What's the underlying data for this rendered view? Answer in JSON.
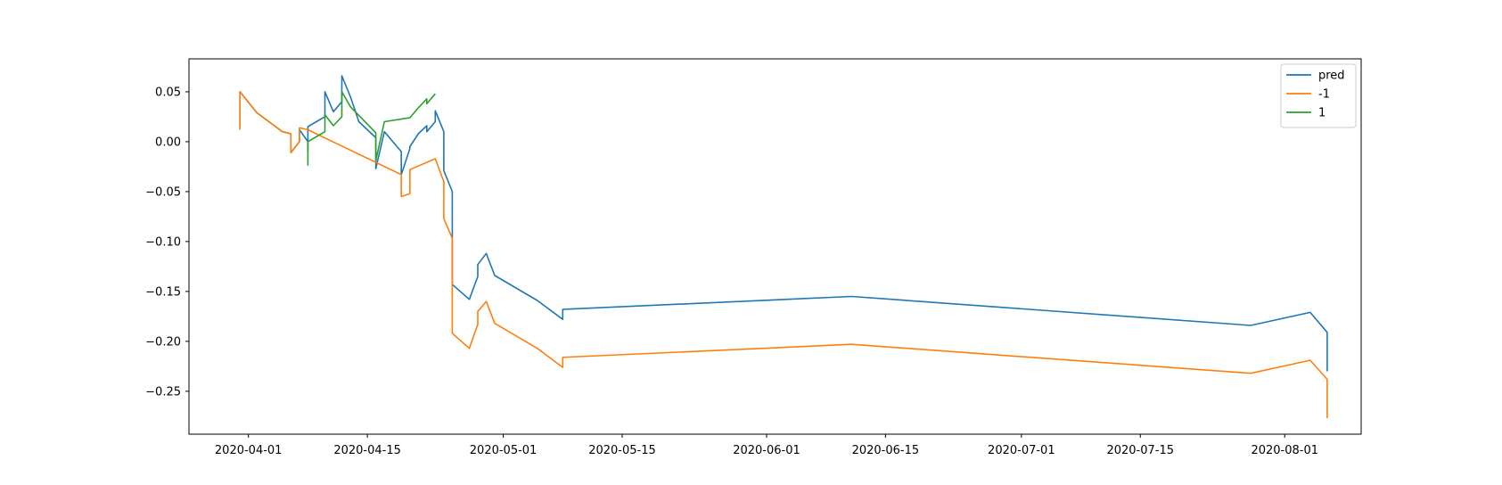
{
  "chart_data": {
    "type": "line",
    "title": "",
    "xlabel": "",
    "ylabel": "",
    "x_axis_type": "date",
    "xlim": [
      "2020-03-25",
      "2020-08-10"
    ],
    "ylim": [
      -0.293,
      0.083
    ],
    "x_ticks": [
      "2020-04-01",
      "2020-04-15",
      "2020-05-01",
      "2020-05-15",
      "2020-06-01",
      "2020-06-15",
      "2020-07-01",
      "2020-07-15",
      "2020-08-01"
    ],
    "y_ticks": [
      0.05,
      0.0,
      -0.05,
      -0.1,
      -0.15,
      -0.2,
      -0.25
    ],
    "y_tick_labels": [
      "0.05",
      "0.00",
      "−0.05",
      "−0.10",
      "−0.15",
      "−0.20",
      "−0.25"
    ],
    "grid": false,
    "legend_position": "top-right",
    "series": [
      {
        "name": "pred",
        "color": "#1f77b4",
        "points": [
          [
            "2020-03-31",
            0.012
          ],
          [
            "2020-03-31",
            0.045
          ],
          [
            "2020-03-31",
            0.05
          ],
          [
            "2020-04-02",
            0.029
          ],
          [
            "2020-04-05",
            0.01
          ],
          [
            "2020-04-06",
            0.008
          ],
          [
            "2020-04-06",
            -0.011
          ],
          [
            "2020-04-07",
            0.0
          ],
          [
            "2020-04-07",
            0.012
          ],
          [
            "2020-04-08",
            0.0
          ],
          [
            "2020-04-08",
            -0.01
          ],
          [
            "2020-04-08",
            0.015
          ],
          [
            "2020-04-09",
            0.02
          ],
          [
            "2020-04-10",
            0.025
          ],
          [
            "2020-04-10",
            0.05
          ],
          [
            "2020-04-11",
            0.03
          ],
          [
            "2020-04-12",
            0.04
          ],
          [
            "2020-04-12",
            0.066
          ],
          [
            "2020-04-13",
            0.045
          ],
          [
            "2020-04-14",
            0.02
          ],
          [
            "2020-04-16",
            0.004
          ],
          [
            "2020-04-16",
            -0.027
          ],
          [
            "2020-04-17",
            0.01
          ],
          [
            "2020-04-19",
            -0.01
          ],
          [
            "2020-04-19",
            -0.033
          ],
          [
            "2020-04-20",
            -0.007
          ],
          [
            "2020-04-20",
            -0.005
          ],
          [
            "2020-04-21",
            0.008
          ],
          [
            "2020-04-22",
            0.016
          ],
          [
            "2020-04-22",
            0.01
          ],
          [
            "2020-04-23",
            0.02
          ],
          [
            "2020-04-23",
            0.031
          ],
          [
            "2020-04-24",
            0.01
          ],
          [
            "2020-04-24",
            -0.029
          ],
          [
            "2020-04-25",
            -0.05
          ],
          [
            "2020-04-25",
            -0.1
          ],
          [
            "2020-04-25",
            -0.143
          ],
          [
            "2020-04-27",
            -0.158
          ],
          [
            "2020-04-28",
            -0.135
          ],
          [
            "2020-04-28",
            -0.123
          ],
          [
            "2020-04-29",
            -0.112
          ],
          [
            "2020-04-30",
            -0.134
          ],
          [
            "2020-05-05",
            -0.159
          ],
          [
            "2020-05-08",
            -0.178
          ],
          [
            "2020-05-08",
            -0.168
          ],
          [
            "2020-06-11",
            -0.155
          ],
          [
            "2020-07-28",
            -0.184
          ],
          [
            "2020-08-04",
            -0.171
          ],
          [
            "2020-08-06",
            -0.191
          ],
          [
            "2020-08-06",
            -0.23
          ]
        ]
      },
      {
        "name": "-1",
        "color": "#ff7f0e",
        "points": [
          [
            "2020-03-31",
            0.012
          ],
          [
            "2020-03-31",
            0.045
          ],
          [
            "2020-03-31",
            0.05
          ],
          [
            "2020-04-02",
            0.029
          ],
          [
            "2020-04-05",
            0.01
          ],
          [
            "2020-04-06",
            0.008
          ],
          [
            "2020-04-06",
            -0.011
          ],
          [
            "2020-04-07",
            0.0
          ],
          [
            "2020-04-07",
            0.014
          ],
          [
            "2020-04-08",
            0.012
          ],
          [
            "2020-04-19",
            -0.033
          ],
          [
            "2020-04-19",
            -0.055
          ],
          [
            "2020-04-20",
            -0.052
          ],
          [
            "2020-04-20",
            -0.028
          ],
          [
            "2020-04-23",
            -0.017
          ],
          [
            "2020-04-24",
            -0.04
          ],
          [
            "2020-04-24",
            -0.055
          ],
          [
            "2020-04-24",
            -0.077
          ],
          [
            "2020-04-25",
            -0.097
          ],
          [
            "2020-04-25",
            -0.192
          ],
          [
            "2020-04-27",
            -0.207
          ],
          [
            "2020-04-28",
            -0.183
          ],
          [
            "2020-04-28",
            -0.17
          ],
          [
            "2020-04-29",
            -0.16
          ],
          [
            "2020-04-30",
            -0.182
          ],
          [
            "2020-05-05",
            -0.207
          ],
          [
            "2020-05-08",
            -0.226
          ],
          [
            "2020-05-08",
            -0.216
          ],
          [
            "2020-06-11",
            -0.203
          ],
          [
            "2020-07-28",
            -0.232
          ],
          [
            "2020-08-04",
            -0.219
          ],
          [
            "2020-08-06",
            -0.238
          ],
          [
            "2020-08-06",
            -0.277
          ]
        ]
      },
      {
        "name": "1",
        "color": "#2ca02c",
        "points": [
          [
            "2020-04-08",
            -0.024
          ],
          [
            "2020-04-08",
            -0.01
          ],
          [
            "2020-04-08",
            0.0
          ],
          [
            "2020-04-10",
            0.01
          ],
          [
            "2020-04-10",
            0.027
          ],
          [
            "2020-04-11",
            0.016
          ],
          [
            "2020-04-12",
            0.025
          ],
          [
            "2020-04-12",
            0.05
          ],
          [
            "2020-04-13",
            0.035
          ],
          [
            "2020-04-16",
            0.009
          ],
          [
            "2020-04-16",
            -0.019
          ],
          [
            "2020-04-17",
            0.02
          ],
          [
            "2020-04-20",
            0.024
          ],
          [
            "2020-04-21",
            0.034
          ],
          [
            "2020-04-22",
            0.043
          ],
          [
            "2020-04-22",
            0.038
          ],
          [
            "2020-04-23",
            0.048
          ]
        ]
      }
    ]
  }
}
